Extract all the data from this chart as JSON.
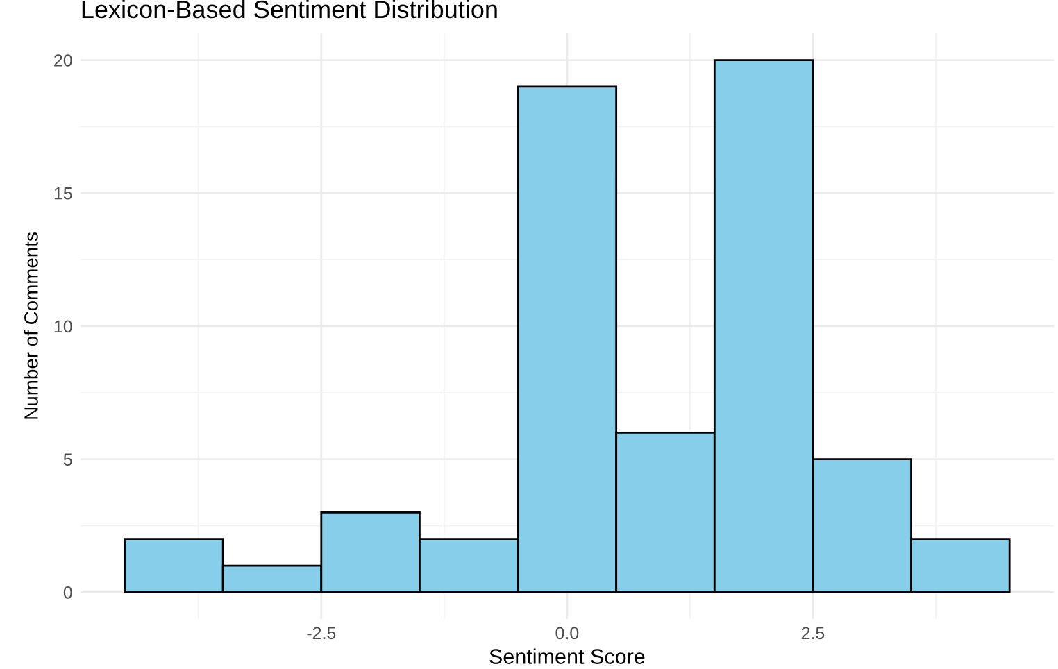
{
  "chart_data": {
    "type": "histogram",
    "title": "Lexicon-Based Sentiment Distribution",
    "xlabel": "Sentiment Score",
    "ylabel": "Number of Comments",
    "bins": [
      -4.5,
      -3.5,
      -2.5,
      -1.5,
      -0.5,
      0.5,
      1.5,
      2.5,
      3.5,
      4.5
    ],
    "values": [
      2,
      1,
      3,
      2,
      19,
      6,
      20,
      5,
      2
    ],
    "color": "#87ceeb",
    "xlim": [
      -4.95,
      4.95
    ],
    "xticks": [
      {
        "value": -2.5,
        "label": "-2.5"
      },
      {
        "value": 0,
        "label": "0.0"
      },
      {
        "value": 2.5,
        "label": "2.5"
      }
    ],
    "ylim": [
      -1,
      21
    ],
    "yticks": [
      0,
      5,
      10,
      15,
      20
    ],
    "grid": true,
    "legend": false
  }
}
